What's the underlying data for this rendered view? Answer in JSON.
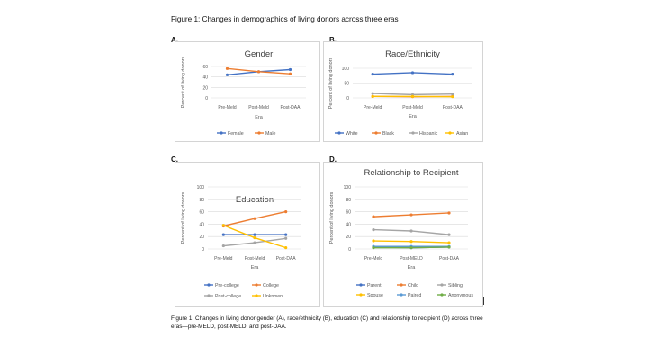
{
  "figure_title": "Figure 1: Changes in demographics of living donors across three eras",
  "caption": "Figure 1. Changes in living donor gender (A), race/ethnicity (B), education (C) and relationship to recipient (D) across three eras—pre-MELD, post-MELD, and post-DAA.",
  "colors": {
    "blue": "#4472C4",
    "orange": "#ED7D31",
    "gray": "#A5A5A5",
    "yellow": "#FFC000",
    "lightblue": "#5B9BD5",
    "green": "#70AD47"
  },
  "panels": [
    {
      "letter": "A.",
      "chart_index": 0
    },
    {
      "letter": "B.",
      "chart_index": 1
    },
    {
      "letter": "C.",
      "chart_index": 2
    },
    {
      "letter": "D.",
      "chart_index": 3
    }
  ],
  "chart_data": [
    {
      "type": "line",
      "title": "Gender",
      "xlabel": "Era",
      "ylabel": "Percent of living donors",
      "categories": [
        "Pre-Meld",
        "Post-Meld",
        "Post-DAA"
      ],
      "ylim": [
        0,
        60
      ],
      "yticks": [
        "0",
        "20",
        "40",
        "60"
      ],
      "grid": true,
      "legend_placement": "bottom",
      "series": [
        {
          "name": "Female",
          "color": "#4472C4",
          "values": [
            44,
            50,
            54
          ]
        },
        {
          "name": "Male",
          "color": "#ED7D31",
          "values": [
            56,
            50,
            46
          ]
        }
      ]
    },
    {
      "type": "line",
      "title": "Race/Ethnicity",
      "xlabel": "Era",
      "ylabel": "Percent of living donors",
      "categories": [
        "Pre-Meld",
        "Post-Meld",
        "Post-DAA"
      ],
      "ylim": [
        0,
        100
      ],
      "yticks": [
        "0",
        "50",
        "100"
      ],
      "grid": true,
      "legend_placement": "bottom",
      "series": [
        {
          "name": "White",
          "color": "#4472C4",
          "values": [
            80,
            85,
            80
          ]
        },
        {
          "name": "Black",
          "color": "#ED7D31",
          "values": [
            5,
            4,
            5
          ]
        },
        {
          "name": "Hispanic",
          "color": "#A5A5A5",
          "values": [
            15,
            11,
            13
          ]
        },
        {
          "name": "Asian",
          "color": "#FFC000",
          "values": [
            5,
            5,
            4
          ]
        }
      ]
    },
    {
      "type": "line",
      "title": "Education",
      "xlabel": "Era",
      "ylabel": "Percent of living donors",
      "categories": [
        "Pre-Meld",
        "Post-Meld",
        "Post-DAA"
      ],
      "ylim": [
        0,
        100
      ],
      "yticks": [
        "0",
        "20",
        "40",
        "60",
        "80",
        "100"
      ],
      "grid": true,
      "legend_placement": "bottom",
      "series": [
        {
          "name": "Pre-college",
          "color": "#4472C4",
          "values": [
            23,
            23,
            23
          ]
        },
        {
          "name": "College",
          "color": "#ED7D31",
          "values": [
            37,
            49,
            60
          ]
        },
        {
          "name": "Post-college",
          "color": "#A5A5A5",
          "values": [
            5,
            10,
            17
          ]
        },
        {
          "name": "Unknown",
          "color": "#FFC000",
          "values": [
            38,
            18,
            2
          ]
        }
      ]
    },
    {
      "type": "line",
      "title": "Relationship to Recipient",
      "xlabel": "Era",
      "ylabel": "Percent of living donors",
      "categories": [
        "Pre-Meld",
        "Post-MELD",
        "Post-DAA"
      ],
      "ylim": [
        0,
        100
      ],
      "yticks": [
        "0",
        "20",
        "40",
        "60",
        "80",
        "100"
      ],
      "grid": true,
      "legend_placement": "bottom",
      "series": [
        {
          "name": "Parent",
          "color": "#4472C4",
          "values": [
            3,
            2,
            3
          ]
        },
        {
          "name": "Child",
          "color": "#ED7D31",
          "values": [
            52,
            55,
            58
          ]
        },
        {
          "name": "Sibling",
          "color": "#A5A5A5",
          "values": [
            31,
            29,
            23
          ]
        },
        {
          "name": "Spouse",
          "color": "#FFC000",
          "values": [
            13,
            12,
            10
          ]
        },
        {
          "name": "Paired",
          "color": "#5B9BD5",
          "values": [
            4,
            4,
            4
          ]
        },
        {
          "name": "Anonymous",
          "color": "#70AD47",
          "values": [
            2,
            2,
            3
          ]
        }
      ]
    }
  ]
}
